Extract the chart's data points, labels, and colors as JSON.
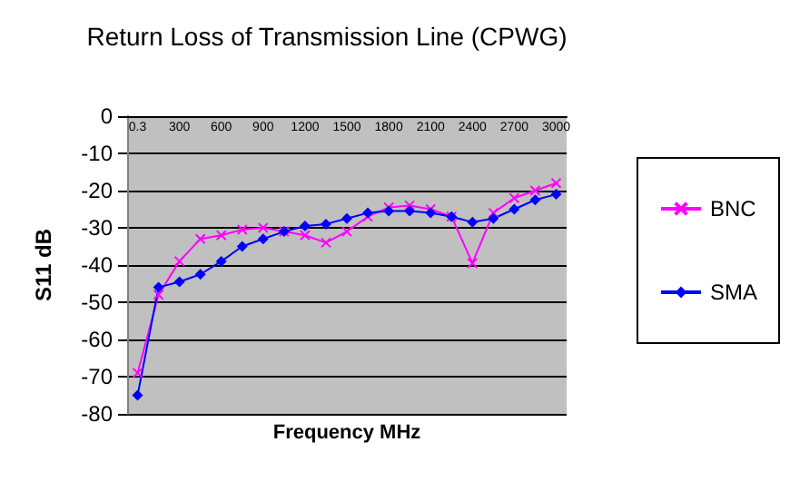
{
  "chart_data": {
    "type": "line",
    "title": "Return Loss of Transmission Line (CPWG)",
    "xlabel": "Frequency MHz",
    "ylabel": "S11 dB",
    "categories": [
      "0.3",
      null,
      "300",
      null,
      "600",
      null,
      "900",
      null,
      "1200",
      null,
      "1500",
      null,
      "1800",
      null,
      "2100",
      null,
      "2400",
      null,
      "2700",
      null,
      "3000"
    ],
    "series": [
      {
        "name": "BNC",
        "color": "#ff00ff",
        "marker": "cross",
        "values": [
          -69,
          -48,
          -39,
          -33,
          -32,
          -30.5,
          -30,
          -31,
          -32,
          -34,
          -31,
          -27,
          -24.5,
          -24,
          -25,
          -27,
          -39.5,
          -26,
          -22,
          -20,
          -18
        ]
      },
      {
        "name": "SMA",
        "color": "#0000ff",
        "marker": "diamond",
        "values": [
          -75,
          -46,
          -44.5,
          -42.5,
          -39,
          -35,
          -33,
          -31,
          -29.5,
          -29,
          -27.5,
          -26,
          -25.5,
          -25.5,
          -26,
          -27,
          -28.5,
          -27.5,
          -25,
          -22.5,
          -21
        ]
      }
    ],
    "ylim": [
      -80,
      0
    ],
    "yticks": [
      0,
      -10,
      -20,
      -30,
      -40,
      -50,
      -60,
      -70,
      -80
    ],
    "grid": "y",
    "legend": "right",
    "line_style": "solid"
  }
}
